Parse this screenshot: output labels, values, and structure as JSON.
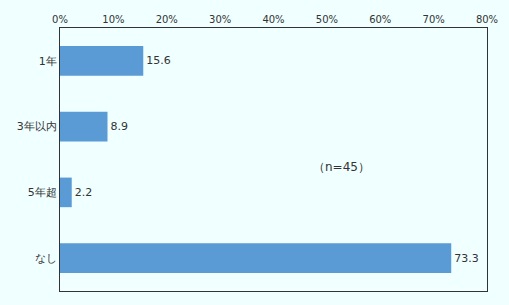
{
  "chart_data": {
    "type": "bar",
    "orientation": "horizontal",
    "categories": [
      "1年",
      "3年以内",
      "5年超",
      "なし"
    ],
    "values": [
      15.6,
      8.9,
      2.2,
      73.3
    ],
    "color": "#5b9bd5",
    "data_labels": true,
    "grid": false,
    "xlim": [
      0,
      80
    ],
    "xticks": [
      {
        "value": 0,
        "label": "0%"
      },
      {
        "value": 10,
        "label": "10%"
      },
      {
        "value": 20,
        "label": "20%"
      },
      {
        "value": 30,
        "label": "30%"
      },
      {
        "value": 40,
        "label": "40%"
      },
      {
        "value": 50,
        "label": "50%"
      },
      {
        "value": 60,
        "label": "60%"
      },
      {
        "value": 70,
        "label": "70%"
      },
      {
        "value": 80,
        "label": "80%"
      }
    ],
    "annotations": [
      "（n=45）"
    ]
  }
}
